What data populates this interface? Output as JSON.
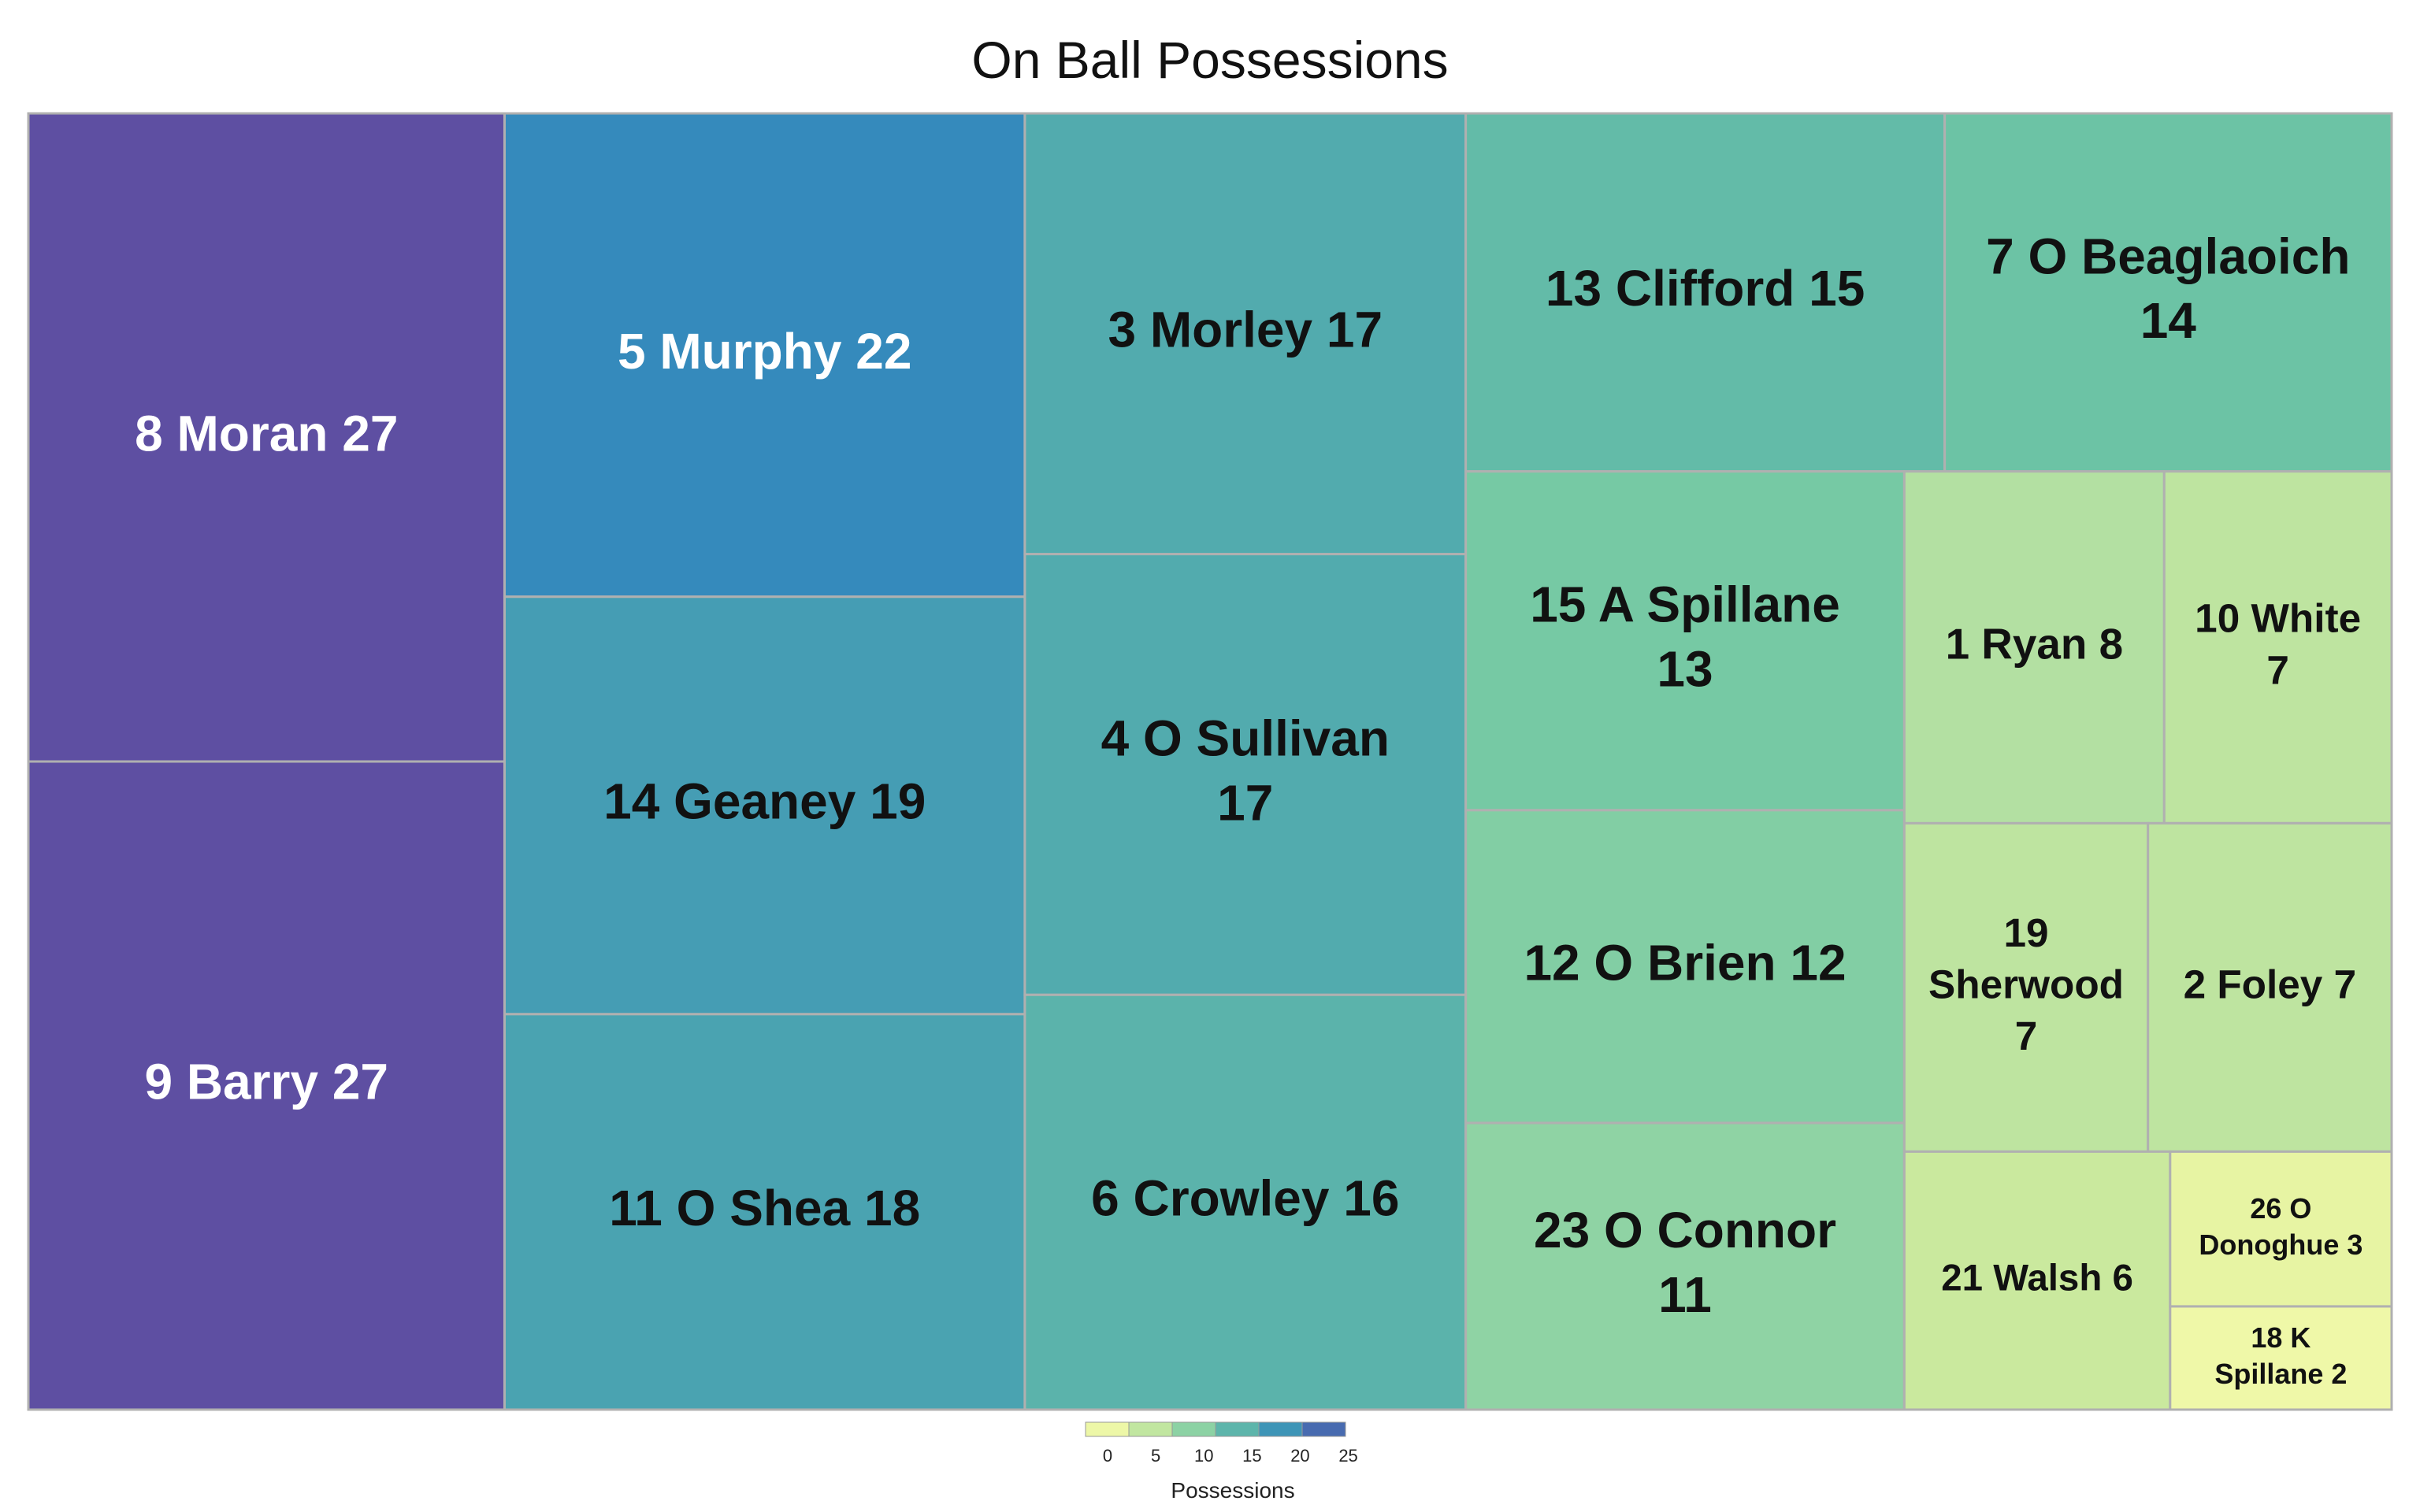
{
  "chart_data": {
    "type": "treemap",
    "title": "On Ball Possessions",
    "value_label": "Possessions",
    "color_scale": {
      "stops": [
        "#ffffb3",
        "#dbef9b",
        "#a7dca4",
        "#70c7a4",
        "#4aa3b1",
        "#3287bd",
        "#5e4fa2"
      ],
      "domain": [
        0,
        27
      ],
      "ticks": [
        0,
        5,
        10,
        15,
        20,
        25
      ]
    },
    "items": [
      {
        "label": "8 Moran",
        "value": 27,
        "text_color": "#ffffff"
      },
      {
        "label": "9 Barry",
        "value": 27,
        "text_color": "#ffffff"
      },
      {
        "label": "5 Murphy",
        "value": 22,
        "text_color": "#ffffff"
      },
      {
        "label": "14 Geaney",
        "value": 19,
        "text_color": "#111111"
      },
      {
        "label": "11 O Shea",
        "value": 18,
        "text_color": "#111111"
      },
      {
        "label": "3 Morley",
        "value": 17,
        "text_color": "#111111"
      },
      {
        "label": "4 O Sullivan",
        "value": 17,
        "text_color": "#111111"
      },
      {
        "label": "6 Crowley",
        "value": 16,
        "text_color": "#111111"
      },
      {
        "label": "13 Clifford",
        "value": 15,
        "text_color": "#111111"
      },
      {
        "label": "7 O Beaglaoich",
        "value": 14,
        "text_color": "#111111"
      },
      {
        "label": "15 A Spillane",
        "value": 13,
        "text_color": "#111111"
      },
      {
        "label": "12 O Brien",
        "value": 12,
        "text_color": "#111111"
      },
      {
        "label": "23 O Connor",
        "value": 11,
        "text_color": "#111111"
      },
      {
        "label": "1 Ryan",
        "value": 8,
        "text_color": "#111111"
      },
      {
        "label": "10 White",
        "value": 7,
        "text_color": "#111111"
      },
      {
        "label": "19 Sherwood",
        "value": 7,
        "text_color": "#111111"
      },
      {
        "label": "2 Foley",
        "value": 7,
        "text_color": "#111111"
      },
      {
        "label": "21 Walsh",
        "value": 6,
        "text_color": "#111111"
      },
      {
        "label": "26 O Donoghue",
        "value": 3,
        "text_color": "#111111"
      },
      {
        "label": "18 K Spillane",
        "value": 2,
        "text_color": "#111111"
      }
    ]
  }
}
